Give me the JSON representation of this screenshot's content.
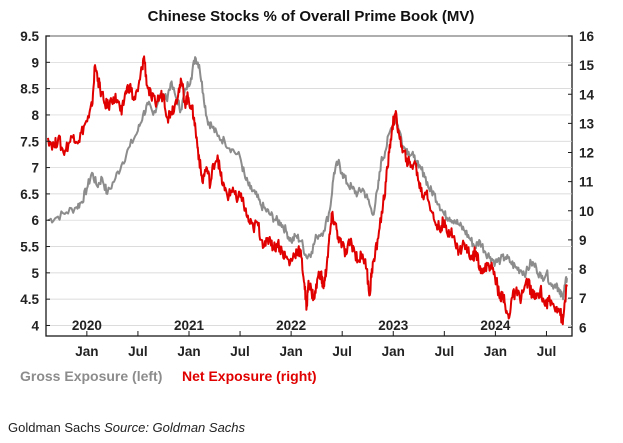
{
  "chart_data": {
    "type": "line",
    "title": "Chinese Stocks % of Overall Prime Book (MV)",
    "x_range": [
      2019.6,
      2024.75
    ],
    "year_labels": [
      "2020",
      "2021",
      "2022",
      "2023",
      "2024"
    ],
    "month_labels": [
      "Jan",
      "Jul",
      "Jan",
      "Jul",
      "Jan",
      "Jul",
      "Jan",
      "Jul",
      "Jan",
      "Jul"
    ],
    "left_axis": {
      "ylim": [
        3.8,
        9.5
      ],
      "ticks": [
        "4",
        "4.5",
        "5",
        "5.5",
        "6",
        "6.5",
        "7",
        "7.5",
        "8",
        "8.5",
        "9",
        "9.5"
      ]
    },
    "right_axis": {
      "ylim": [
        5.7,
        16
      ],
      "ticks": [
        "6",
        "7",
        "8",
        "9",
        "10",
        "11",
        "12",
        "13",
        "14",
        "15",
        "16"
      ]
    },
    "series": [
      {
        "name": "Gross Exposure (left)",
        "axis": "left",
        "color": "#8c8c8c",
        "points": [
          [
            2019.62,
            6.0
          ],
          [
            2019.7,
            6.05
          ],
          [
            2019.8,
            6.15
          ],
          [
            2019.9,
            6.25
          ],
          [
            2019.95,
            6.35
          ],
          [
            2020.0,
            6.6
          ],
          [
            2020.05,
            6.9
          ],
          [
            2020.1,
            6.65
          ],
          [
            2020.15,
            6.8
          ],
          [
            2020.2,
            6.5
          ],
          [
            2020.28,
            6.8
          ],
          [
            2020.35,
            7.1
          ],
          [
            2020.42,
            7.4
          ],
          [
            2020.5,
            7.7
          ],
          [
            2020.55,
            8.0
          ],
          [
            2020.6,
            8.2
          ],
          [
            2020.65,
            8.0
          ],
          [
            2020.72,
            8.4
          ],
          [
            2020.78,
            8.3
          ],
          [
            2020.82,
            8.6
          ],
          [
            2020.88,
            8.3
          ],
          [
            2020.92,
            8.1
          ],
          [
            2020.97,
            8.5
          ],
          [
            2021.02,
            8.7
          ],
          [
            2021.06,
            9.1
          ],
          [
            2021.1,
            8.95
          ],
          [
            2021.14,
            8.4
          ],
          [
            2021.18,
            7.9
          ],
          [
            2021.22,
            7.8
          ],
          [
            2021.28,
            7.6
          ],
          [
            2021.35,
            7.5
          ],
          [
            2021.42,
            7.35
          ],
          [
            2021.5,
            7.2
          ],
          [
            2021.55,
            6.8
          ],
          [
            2021.6,
            6.6
          ],
          [
            2021.65,
            6.5
          ],
          [
            2021.7,
            6.3
          ],
          [
            2021.75,
            6.2
          ],
          [
            2021.8,
            6.1
          ],
          [
            2021.85,
            6.0
          ],
          [
            2021.9,
            5.95
          ],
          [
            2021.95,
            5.8
          ],
          [
            2022.0,
            5.6
          ],
          [
            2022.05,
            5.7
          ],
          [
            2022.1,
            5.6
          ],
          [
            2022.15,
            5.3
          ],
          [
            2022.2,
            5.4
          ],
          [
            2022.25,
            5.7
          ],
          [
            2022.32,
            5.8
          ],
          [
            2022.38,
            6.2
          ],
          [
            2022.42,
            6.9
          ],
          [
            2022.46,
            7.1
          ],
          [
            2022.5,
            6.9
          ],
          [
            2022.55,
            6.7
          ],
          [
            2022.6,
            6.6
          ],
          [
            2022.65,
            6.5
          ],
          [
            2022.7,
            6.6
          ],
          [
            2022.75,
            6.4
          ],
          [
            2022.8,
            6.1
          ],
          [
            2022.85,
            6.6
          ],
          [
            2022.88,
            7.1
          ],
          [
            2022.92,
            7.3
          ],
          [
            2022.97,
            7.7
          ],
          [
            2023.02,
            7.95
          ],
          [
            2023.06,
            7.7
          ],
          [
            2023.1,
            7.4
          ],
          [
            2023.15,
            7.3
          ],
          [
            2023.2,
            7.2
          ],
          [
            2023.25,
            7.0
          ],
          [
            2023.3,
            6.9
          ],
          [
            2023.35,
            6.6
          ],
          [
            2023.4,
            6.5
          ],
          [
            2023.45,
            6.3
          ],
          [
            2023.5,
            6.1
          ],
          [
            2023.55,
            6.05
          ],
          [
            2023.6,
            6.0
          ],
          [
            2023.65,
            5.9
          ],
          [
            2023.7,
            5.8
          ],
          [
            2023.75,
            5.65
          ],
          [
            2023.8,
            5.5
          ],
          [
            2023.85,
            5.6
          ],
          [
            2023.9,
            5.4
          ],
          [
            2023.95,
            5.3
          ],
          [
            2024.0,
            5.2
          ],
          [
            2024.05,
            5.25
          ],
          [
            2024.1,
            5.3
          ],
          [
            2024.15,
            5.2
          ],
          [
            2024.2,
            5.1
          ],
          [
            2024.25,
            5.05
          ],
          [
            2024.3,
            5.0
          ],
          [
            2024.35,
            5.2
          ],
          [
            2024.4,
            5.1
          ],
          [
            2024.45,
            4.9
          ],
          [
            2024.5,
            5.0
          ],
          [
            2024.55,
            4.75
          ],
          [
            2024.6,
            4.8
          ],
          [
            2024.63,
            4.6
          ],
          [
            2024.66,
            4.55
          ],
          [
            2024.68,
            4.75
          ],
          [
            2024.7,
            4.9
          ]
        ]
      },
      {
        "name": "Net Exposure (right)",
        "axis": "right",
        "color": "#e00000",
        "points": [
          [
            2019.62,
            12.5
          ],
          [
            2019.68,
            12.2
          ],
          [
            2019.72,
            12.5
          ],
          [
            2019.77,
            12.0
          ],
          [
            2019.82,
            12.3
          ],
          [
            2019.87,
            12.6
          ],
          [
            2019.92,
            12.4
          ],
          [
            2019.97,
            12.9
          ],
          [
            2020.02,
            13.2
          ],
          [
            2020.05,
            13.6
          ],
          [
            2020.08,
            15.0
          ],
          [
            2020.11,
            14.5
          ],
          [
            2020.13,
            14.2
          ],
          [
            2020.17,
            13.7
          ],
          [
            2020.21,
            13.6
          ],
          [
            2020.26,
            13.9
          ],
          [
            2020.3,
            13.8
          ],
          [
            2020.34,
            13.3
          ],
          [
            2020.38,
            14.1
          ],
          [
            2020.42,
            14.3
          ],
          [
            2020.46,
            13.8
          ],
          [
            2020.5,
            14.1
          ],
          [
            2020.54,
            14.9
          ],
          [
            2020.56,
            15.3
          ],
          [
            2020.59,
            14.3
          ],
          [
            2020.63,
            13.9
          ],
          [
            2020.67,
            13.7
          ],
          [
            2020.71,
            13.9
          ],
          [
            2020.75,
            14.0
          ],
          [
            2020.79,
            13.2
          ],
          [
            2020.82,
            13.4
          ],
          [
            2020.86,
            13.6
          ],
          [
            2020.9,
            14.2
          ],
          [
            2020.93,
            14.4
          ],
          [
            2020.96,
            13.7
          ],
          [
            2020.99,
            13.9
          ],
          [
            2021.02,
            13.6
          ],
          [
            2021.05,
            13.2
          ],
          [
            2021.08,
            12.3
          ],
          [
            2021.1,
            11.8
          ],
          [
            2021.13,
            11.0
          ],
          [
            2021.17,
            11.5
          ],
          [
            2021.21,
            10.9
          ],
          [
            2021.24,
            11.6
          ],
          [
            2021.28,
            11.9
          ],
          [
            2021.31,
            11.2
          ],
          [
            2021.35,
            10.7
          ],
          [
            2021.39,
            10.5
          ],
          [
            2021.43,
            10.8
          ],
          [
            2021.47,
            10.3
          ],
          [
            2021.51,
            10.6
          ],
          [
            2021.55,
            10.0
          ],
          [
            2021.59,
            9.6
          ],
          [
            2021.63,
            9.4
          ],
          [
            2021.67,
            9.6
          ],
          [
            2021.71,
            9.0
          ],
          [
            2021.75,
            8.8
          ],
          [
            2021.79,
            9.1
          ],
          [
            2021.83,
            8.7
          ],
          [
            2021.87,
            8.9
          ],
          [
            2021.91,
            8.6
          ],
          [
            2021.95,
            8.4
          ],
          [
            2021.99,
            8.2
          ],
          [
            2022.03,
            8.5
          ],
          [
            2022.07,
            8.7
          ],
          [
            2022.1,
            8.4
          ],
          [
            2022.13,
            7.5
          ],
          [
            2022.15,
            6.6
          ],
          [
            2022.17,
            7.6
          ],
          [
            2022.2,
            7.2
          ],
          [
            2022.23,
            7.0
          ],
          [
            2022.26,
            7.7
          ],
          [
            2022.29,
            7.9
          ],
          [
            2022.31,
            7.4
          ],
          [
            2022.33,
            7.6
          ],
          [
            2022.35,
            8.2
          ],
          [
            2022.38,
            9.2
          ],
          [
            2022.4,
            9.8
          ],
          [
            2022.43,
            9.6
          ],
          [
            2022.46,
            9.1
          ],
          [
            2022.5,
            8.8
          ],
          [
            2022.54,
            8.5
          ],
          [
            2022.58,
            9.0
          ],
          [
            2022.62,
            8.6
          ],
          [
            2022.66,
            8.3
          ],
          [
            2022.7,
            8.5
          ],
          [
            2022.74,
            8.0
          ],
          [
            2022.77,
            7.1
          ],
          [
            2022.79,
            8.0
          ],
          [
            2022.82,
            8.4
          ],
          [
            2022.86,
            9.3
          ],
          [
            2022.9,
            10.2
          ],
          [
            2022.93,
            11.0
          ],
          [
            2022.96,
            12.0
          ],
          [
            2022.99,
            12.9
          ],
          [
            2023.02,
            13.3
          ],
          [
            2023.05,
            12.8
          ],
          [
            2023.09,
            12.0
          ],
          [
            2023.13,
            11.8
          ],
          [
            2023.17,
            11.5
          ],
          [
            2023.21,
            11.7
          ],
          [
            2023.25,
            11.0
          ],
          [
            2023.29,
            10.5
          ],
          [
            2023.33,
            10.7
          ],
          [
            2023.37,
            10.0
          ],
          [
            2023.41,
            9.6
          ],
          [
            2023.45,
            9.4
          ],
          [
            2023.49,
            9.6
          ],
          [
            2023.53,
            9.2
          ],
          [
            2023.57,
            9.4
          ],
          [
            2023.61,
            8.8
          ],
          [
            2023.65,
            8.6
          ],
          [
            2023.69,
            8.9
          ],
          [
            2023.73,
            8.6
          ],
          [
            2023.77,
            8.4
          ],
          [
            2023.81,
            8.6
          ],
          [
            2023.85,
            8.1
          ],
          [
            2023.89,
            7.9
          ],
          [
            2023.93,
            8.2
          ],
          [
            2023.97,
            8.0
          ],
          [
            2024.01,
            7.6
          ],
          [
            2024.04,
            7.0
          ],
          [
            2024.07,
            7.2
          ],
          [
            2024.1,
            6.6
          ],
          [
            2024.13,
            6.3
          ],
          [
            2024.16,
            7.0
          ],
          [
            2024.2,
            7.2
          ],
          [
            2024.24,
            7.0
          ],
          [
            2024.28,
            7.3
          ],
          [
            2024.32,
            7.6
          ],
          [
            2024.36,
            7.1
          ],
          [
            2024.4,
            7.0
          ],
          [
            2024.44,
            7.3
          ],
          [
            2024.48,
            6.8
          ],
          [
            2024.52,
            6.9
          ],
          [
            2024.56,
            6.8
          ],
          [
            2024.6,
            6.7
          ],
          [
            2024.63,
            6.6
          ],
          [
            2024.66,
            6.1
          ],
          [
            2024.68,
            6.9
          ],
          [
            2024.7,
            7.4
          ]
        ]
      }
    ]
  },
  "legend": {
    "gross": "Gross Exposure (left)",
    "net": "Net Exposure (right)"
  },
  "caption": {
    "author": "Goldman Sachs",
    "source": "Source: Goldman Sachs"
  }
}
